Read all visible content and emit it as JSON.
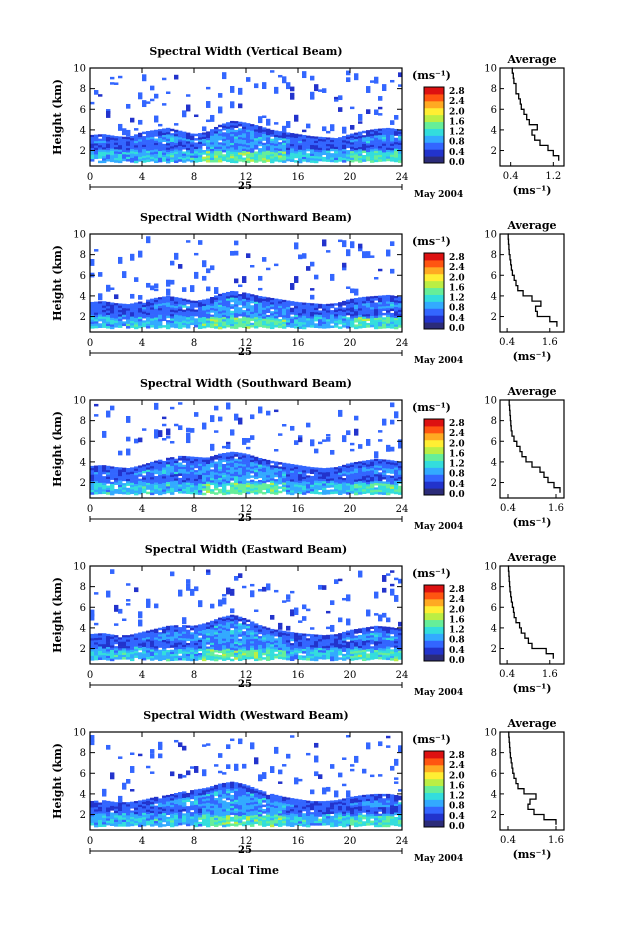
{
  "figure": {
    "date_label": "May 2004",
    "day_label": "25",
    "xlabel": "Local Time",
    "ylabel": "Height (km)",
    "colorbar_unit": "(ms⁻¹)",
    "average_title": "Average",
    "average_xlabel": "(ms⁻¹)",
    "colors": {
      "ramp": [
        "#2b2b78",
        "#2233cc",
        "#3366ff",
        "#33aaff",
        "#33dddd",
        "#66ee99",
        "#bbee44",
        "#ffee33",
        "#ffaa22",
        "#ff5511",
        "#dd1111"
      ]
    }
  },
  "chart_data": [
    {
      "type": "heatmap",
      "title": "Spectral Width (Vertical Beam)",
      "xlabel": "Local Time",
      "ylabel": "Height (km)",
      "xlim": [
        0,
        24
      ],
      "ylim": [
        0.5,
        10
      ],
      "xticks": [
        0,
        4,
        8,
        12,
        16,
        20,
        24
      ],
      "yticks": [
        2,
        4,
        6,
        8,
        10
      ],
      "colorbar": {
        "unit": "(ms⁻¹)",
        "range": [
          0.0,
          2.8
        ],
        "ticks": [
          "2.8",
          "2.4",
          "2.0",
          "1.6",
          "1.2",
          "0.8",
          "0.4",
          "0.0"
        ]
      },
      "boundary_layer_top_km": [
        3.5,
        3.6,
        3.4,
        3.3,
        3.8,
        4.0,
        4.2,
        3.9,
        3.6,
        3.8,
        4.5,
        4.9,
        4.7,
        4.4,
        4.0,
        3.8,
        3.6,
        3.4,
        3.3,
        3.2,
        3.6,
        3.9,
        4.1,
        4.2,
        4.0
      ],
      "average_profile": {
        "xlim": [
          0.2,
          1.4
        ],
        "xticks": [
          0.4,
          1.2
        ],
        "height_km": [
          1,
          1.5,
          2,
          2.5,
          3,
          3.5,
          4,
          4.5,
          5,
          5.5,
          6,
          6.5,
          7,
          7.5,
          8,
          8.5,
          9,
          9.5,
          10
        ],
        "value": [
          1.3,
          1.2,
          1.1,
          0.95,
          0.85,
          0.8,
          0.9,
          0.75,
          0.7,
          0.65,
          0.6,
          0.58,
          0.55,
          0.5,
          0.5,
          0.46,
          0.45,
          0.43,
          0.42
        ]
      }
    },
    {
      "type": "heatmap",
      "title": "Spectral Width (Northward Beam)",
      "xlabel": "Local Time",
      "ylabel": "Height (km)",
      "xlim": [
        0,
        24
      ],
      "ylim": [
        0.5,
        10
      ],
      "xticks": [
        0,
        4,
        8,
        12,
        16,
        20,
        24
      ],
      "yticks": [
        2,
        4,
        6,
        8,
        10
      ],
      "colorbar": {
        "unit": "(ms⁻¹)",
        "range": [
          0.0,
          2.8
        ],
        "ticks": [
          "2.8",
          "2.4",
          "2.0",
          "1.6",
          "1.2",
          "0.8",
          "0.4",
          "0.0"
        ]
      },
      "boundary_layer_top_km": [
        3.4,
        3.5,
        3.3,
        3.2,
        3.5,
        3.8,
        4.0,
        3.8,
        3.5,
        3.7,
        4.2,
        4.5,
        4.3,
        4.0,
        3.8,
        3.6,
        3.4,
        3.3,
        3.2,
        3.3,
        3.7,
        3.9,
        4.0,
        4.1,
        3.9
      ],
      "average_profile": {
        "xlim": [
          0.2,
          2.0
        ],
        "xticks": [
          0.4,
          1.6
        ],
        "height_km": [
          1,
          1.5,
          2,
          2.5,
          3,
          3.5,
          4,
          4.5,
          5,
          5.5,
          6,
          6.5,
          7,
          7.5,
          8,
          8.5,
          9,
          9.5,
          10
        ],
        "value": [
          1.8,
          1.6,
          1.25,
          1.2,
          1.35,
          1.1,
          0.85,
          0.7,
          0.65,
          0.6,
          0.55,
          0.52,
          0.5,
          0.48,
          0.46,
          0.45,
          0.44,
          0.43,
          0.42
        ]
      }
    },
    {
      "type": "heatmap",
      "title": "Spectral Width (Southward Beam)",
      "xlabel": "Local Time",
      "ylabel": "Height (km)",
      "xlim": [
        0,
        24
      ],
      "ylim": [
        0.5,
        10
      ],
      "xticks": [
        0,
        4,
        8,
        12,
        16,
        20,
        24
      ],
      "yticks": [
        2,
        4,
        6,
        8,
        10
      ],
      "colorbar": {
        "unit": "(ms⁻¹)",
        "range": [
          0.0,
          2.8
        ],
        "ticks": [
          "2.8",
          "2.4",
          "2.0",
          "1.6",
          "1.2",
          "0.8",
          "0.4",
          "0.0"
        ]
      },
      "boundary_layer_top_km": [
        3.6,
        3.7,
        3.5,
        3.4,
        3.7,
        4.1,
        4.4,
        4.6,
        4.5,
        4.4,
        4.8,
        5.0,
        4.8,
        4.4,
        4.1,
        3.9,
        3.7,
        3.5,
        3.4,
        3.5,
        3.9,
        4.1,
        4.3,
        4.2,
        4.0
      ],
      "average_profile": {
        "xlim": [
          0.2,
          1.8
        ],
        "xticks": [
          0.4,
          1.6
        ],
        "height_km": [
          1,
          1.5,
          2,
          2.5,
          3,
          3.5,
          4,
          4.5,
          5,
          5.5,
          6,
          6.5,
          7,
          7.5,
          8,
          8.5,
          9,
          9.5,
          10
        ],
        "value": [
          1.7,
          1.55,
          1.4,
          1.3,
          1.2,
          1.0,
          0.85,
          0.75,
          0.7,
          0.62,
          0.55,
          0.5,
          0.48,
          0.47,
          0.46,
          0.45,
          0.44,
          0.43,
          0.42
        ]
      }
    },
    {
      "type": "heatmap",
      "title": "Spectral Width (Eastward Beam)",
      "xlabel": "Local Time",
      "ylabel": "Height (km)",
      "xlim": [
        0,
        24
      ],
      "ylim": [
        0.5,
        10
      ],
      "xticks": [
        0,
        4,
        8,
        12,
        16,
        20,
        24
      ],
      "yticks": [
        2,
        4,
        6,
        8,
        10
      ],
      "colorbar": {
        "unit": "(ms⁻¹)",
        "range": [
          0.0,
          2.8
        ],
        "ticks": [
          "2.8",
          "2.4",
          "2.0",
          "1.6",
          "1.2",
          "0.8",
          "0.4",
          "0.0"
        ]
      },
      "boundary_layer_top_km": [
        3.4,
        3.5,
        3.3,
        3.3,
        3.6,
        3.9,
        4.2,
        4.3,
        4.2,
        4.5,
        5.0,
        5.3,
        4.9,
        4.3,
        3.9,
        3.7,
        3.5,
        3.4,
        3.3,
        3.4,
        3.8,
        4.0,
        4.2,
        4.1,
        3.9
      ],
      "average_profile": {
        "xlim": [
          0.2,
          2.0
        ],
        "xticks": [
          0.4,
          1.6
        ],
        "height_km": [
          1,
          1.5,
          2,
          2.5,
          3,
          3.5,
          4,
          4.5,
          5,
          5.5,
          6,
          6.5,
          7,
          7.5,
          8,
          8.5,
          9,
          9.5,
          10
        ],
        "value": [
          1.7,
          1.5,
          1.1,
          1.0,
          0.9,
          0.8,
          0.75,
          0.65,
          0.6,
          0.58,
          0.55,
          0.52,
          0.5,
          0.48,
          0.47,
          0.46,
          0.45,
          0.44,
          0.43
        ]
      }
    },
    {
      "type": "heatmap",
      "title": "Spectral Width (Westward Beam)",
      "xlabel": "Local Time",
      "ylabel": "Height (km)",
      "xlim": [
        0,
        24
      ],
      "ylim": [
        0.5,
        10
      ],
      "xticks": [
        0,
        4,
        8,
        12,
        16,
        20,
        24
      ],
      "yticks": [
        2,
        4,
        6,
        8,
        10
      ],
      "colorbar": {
        "unit": "(ms⁻¹)",
        "range": [
          0.0,
          2.8
        ],
        "ticks": [
          "2.8",
          "2.4",
          "2.0",
          "1.6",
          "1.2",
          "0.8",
          "0.4",
          "0.0"
        ]
      },
      "boundary_layer_top_km": [
        3.3,
        3.4,
        3.2,
        3.2,
        3.4,
        3.7,
        3.9,
        4.2,
        4.4,
        4.6,
        5.0,
        5.2,
        4.9,
        4.4,
        4.0,
        3.7,
        3.5,
        3.3,
        3.3,
        3.4,
        3.7,
        3.9,
        4.0,
        4.0,
        3.8
      ],
      "average_profile": {
        "xlim": [
          0.2,
          1.8
        ],
        "xticks": [
          0.4,
          1.6
        ],
        "height_km": [
          1,
          1.5,
          2,
          2.5,
          3,
          3.5,
          4,
          4.5,
          5,
          5.5,
          6,
          6.5,
          7,
          7.5,
          8,
          8.5,
          9,
          9.5,
          10
        ],
        "value": [
          1.6,
          1.3,
          1.05,
          0.9,
          0.95,
          1.1,
          0.8,
          0.65,
          0.6,
          0.55,
          0.52,
          0.5,
          0.48,
          0.46,
          0.45,
          0.44,
          0.43,
          0.42,
          0.4
        ]
      }
    }
  ]
}
